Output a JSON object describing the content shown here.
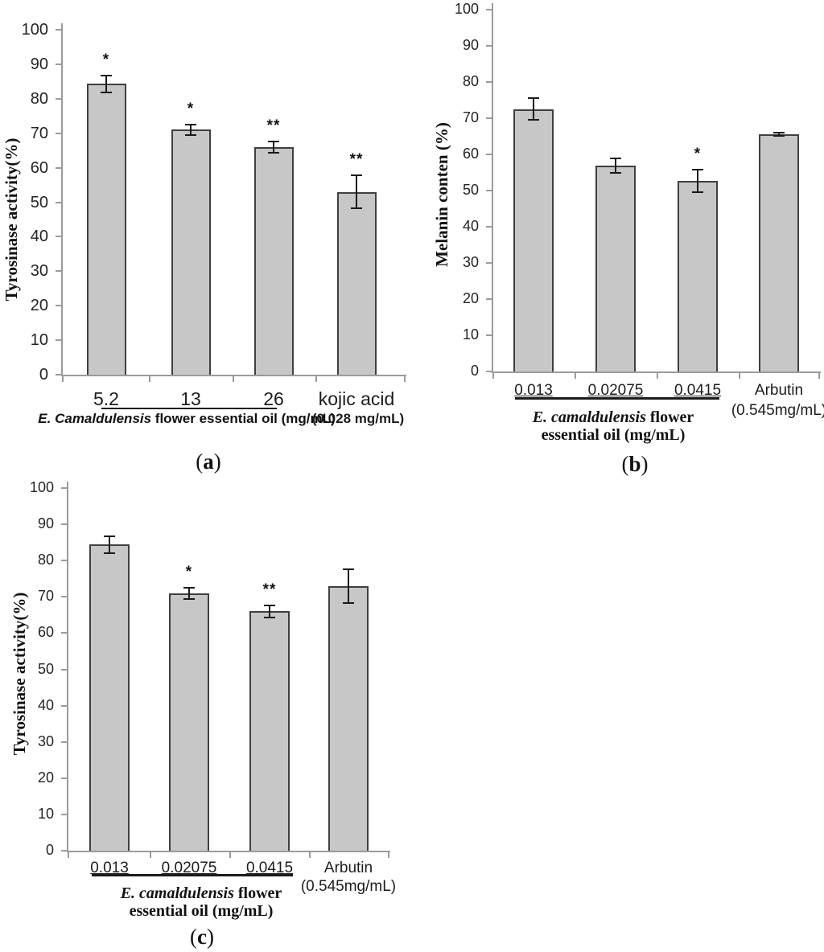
{
  "style": {
    "bar_fill": "#c7c7c7",
    "bar_border": "#3f3f3f",
    "axis_color": "#9b9b9b",
    "error_color": "#1a1a1a",
    "text_color": "#1c1c1c"
  },
  "chart_data": [
    {
      "id": "a",
      "type": "bar",
      "title": "",
      "ylabel": "Tyrosinase activity(%)",
      "ylim": [
        0,
        100
      ],
      "ytick_step": 10,
      "grid": false,
      "categories": [
        "5.2",
        "13",
        "26",
        "kojic acid"
      ],
      "values": [
        84.3,
        71,
        66,
        53
      ],
      "errors": [
        2.4,
        1.5,
        1.6,
        4.7
      ],
      "significance": [
        "*",
        "*",
        "**",
        "**"
      ],
      "xlabel_italic": "E. Camaldulensis",
      "xlabel_rest": " flower essential oil (mg/mL)",
      "xlabel_line2": "",
      "last_category_sublabel": "(0.028 mg/mL)",
      "caption": {
        "open": "(",
        "letter": "a",
        "close": ")"
      }
    },
    {
      "id": "b",
      "type": "bar",
      "title": "",
      "ylabel": "Melanin conten (%)",
      "ylim": [
        0,
        100
      ],
      "ytick_step": 10,
      "grid": false,
      "categories": [
        "0.013",
        "0.02075",
        "0.0415",
        "Arbutin"
      ],
      "values": [
        72.5,
        57,
        52.7,
        65.5
      ],
      "errors": [
        3.0,
        2.0,
        3.1,
        0.4
      ],
      "significance": [
        "",
        "",
        "*",
        ""
      ],
      "xlabel_italic": "E. camaldulensis",
      "xlabel_rest": " flower",
      "xlabel_line2": "essential oil (mg/mL)",
      "last_category_sublabel": "(0.545mg/mL)",
      "caption": {
        "open": "(",
        "letter": "b",
        "close": ")"
      }
    },
    {
      "id": "c",
      "type": "bar",
      "title": "",
      "ylabel": "Tyrosinase activity(%)",
      "ylim": [
        0,
        100
      ],
      "ytick_step": 10,
      "grid": false,
      "categories": [
        "0.013",
        "0.02075",
        "0.0415",
        "Arbutin"
      ],
      "values": [
        84.4,
        71,
        66,
        73
      ],
      "errors": [
        2.4,
        1.6,
        1.6,
        4.7
      ],
      "significance": [
        "",
        "*",
        "**",
        ""
      ],
      "xlabel_italic": "E. camaldulensis",
      "xlabel_rest": " flower",
      "xlabel_line2": "essential oil (mg/mL)",
      "last_category_sublabel": "(0.545mg/mL)",
      "caption": {
        "open": "(",
        "letter": "c",
        "close": ")"
      }
    }
  ]
}
